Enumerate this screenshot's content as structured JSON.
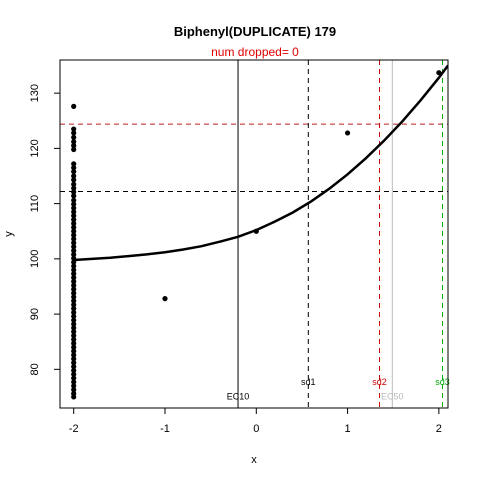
{
  "chart_data": {
    "type": "scatter",
    "title": "Biphenyl(DUPLICATE) 179",
    "subtitle": "num dropped= 0",
    "xlabel": "x",
    "ylabel": "y",
    "xlim": [
      -2.15,
      2.1
    ],
    "ylim": [
      73,
      136
    ],
    "x_ticks": [
      -2,
      -1,
      0,
      1,
      2
    ],
    "y_ticks": [
      80,
      90,
      100,
      110,
      120,
      130
    ],
    "grid": false,
    "points": [
      {
        "x": -2,
        "y": 127.6
      },
      {
        "x": -2,
        "y": 123.5
      },
      {
        "x": -2,
        "y": 122.8
      },
      {
        "x": -2,
        "y": 122.0
      },
      {
        "x": -2,
        "y": 121.2
      },
      {
        "x": -2,
        "y": 120.5
      },
      {
        "x": -2,
        "y": 119.8
      },
      {
        "x": -2,
        "y": 117.2
      },
      {
        "x": -2,
        "y": 116.5
      },
      {
        "x": -2,
        "y": 115.8
      },
      {
        "x": -2,
        "y": 115.0
      },
      {
        "x": -2,
        "y": 114.3
      },
      {
        "x": -2,
        "y": 113.5
      },
      {
        "x": -2,
        "y": 112.8
      },
      {
        "x": -2,
        "y": 112.1
      },
      {
        "x": -2,
        "y": 111.4
      },
      {
        "x": -2,
        "y": 110.6
      },
      {
        "x": -2,
        "y": 109.9
      },
      {
        "x": -2,
        "y": 109.2
      },
      {
        "x": -2,
        "y": 108.5
      },
      {
        "x": -2,
        "y": 107.8
      },
      {
        "x": -2,
        "y": 107.1
      },
      {
        "x": -2,
        "y": 106.4
      },
      {
        "x": -2,
        "y": 105.7
      },
      {
        "x": -2,
        "y": 105.0
      },
      {
        "x": -2,
        "y": 104.3
      },
      {
        "x": -2,
        "y": 103.6
      },
      {
        "x": -2,
        "y": 102.9
      },
      {
        "x": -2,
        "y": 102.2
      },
      {
        "x": -2,
        "y": 101.5
      },
      {
        "x": -2,
        "y": 100.8
      },
      {
        "x": -2,
        "y": 100.1
      },
      {
        "x": -2,
        "y": 99.4
      },
      {
        "x": -2,
        "y": 98.7
      },
      {
        "x": -2,
        "y": 98.0
      },
      {
        "x": -2,
        "y": 97.3
      },
      {
        "x": -2,
        "y": 96.6
      },
      {
        "x": -2,
        "y": 95.9
      },
      {
        "x": -2,
        "y": 95.2
      },
      {
        "x": -2,
        "y": 94.5
      },
      {
        "x": -2,
        "y": 93.8
      },
      {
        "x": -2,
        "y": 93.1
      },
      {
        "x": -2,
        "y": 92.4
      },
      {
        "x": -2,
        "y": 91.7
      },
      {
        "x": -2,
        "y": 91.0
      },
      {
        "x": -2,
        "y": 90.3
      },
      {
        "x": -2,
        "y": 89.6
      },
      {
        "x": -2,
        "y": 88.9
      },
      {
        "x": -2,
        "y": 88.2
      },
      {
        "x": -2,
        "y": 87.5
      },
      {
        "x": -2,
        "y": 86.8
      },
      {
        "x": -2,
        "y": 86.1
      },
      {
        "x": -2,
        "y": 85.4
      },
      {
        "x": -2,
        "y": 84.7
      },
      {
        "x": -2,
        "y": 84.0
      },
      {
        "x": -2,
        "y": 83.3
      },
      {
        "x": -2,
        "y": 82.6
      },
      {
        "x": -2,
        "y": 81.9
      },
      {
        "x": -2,
        "y": 81.2
      },
      {
        "x": -2,
        "y": 80.5
      },
      {
        "x": -2,
        "y": 79.8
      },
      {
        "x": -2,
        "y": 79.1
      },
      {
        "x": -2,
        "y": 78.4
      },
      {
        "x": -2,
        "y": 77.7
      },
      {
        "x": -2,
        "y": 77.0
      },
      {
        "x": -2,
        "y": 76.3
      },
      {
        "x": -2,
        "y": 75.6
      },
      {
        "x": -2,
        "y": 75.0
      },
      {
        "x": -1,
        "y": 92.8
      },
      {
        "x": 0,
        "y": 105.0
      },
      {
        "x": 1,
        "y": 122.8
      },
      {
        "x": 2,
        "y": 133.7
      }
    ],
    "fit_curve": [
      {
        "x": -2.0,
        "y": 99.8
      },
      {
        "x": -1.8,
        "y": 100.0
      },
      {
        "x": -1.6,
        "y": 100.2
      },
      {
        "x": -1.4,
        "y": 100.5
      },
      {
        "x": -1.2,
        "y": 100.8
      },
      {
        "x": -1.0,
        "y": 101.2
      },
      {
        "x": -0.8,
        "y": 101.7
      },
      {
        "x": -0.6,
        "y": 102.3
      },
      {
        "x": -0.4,
        "y": 103.1
      },
      {
        "x": -0.2,
        "y": 104.0
      },
      {
        "x": 0.0,
        "y": 105.2
      },
      {
        "x": 0.2,
        "y": 106.7
      },
      {
        "x": 0.4,
        "y": 108.4
      },
      {
        "x": 0.6,
        "y": 110.4
      },
      {
        "x": 0.8,
        "y": 112.7
      },
      {
        "x": 1.0,
        "y": 115.3
      },
      {
        "x": 1.2,
        "y": 118.2
      },
      {
        "x": 1.4,
        "y": 121.4
      },
      {
        "x": 1.6,
        "y": 124.9
      },
      {
        "x": 1.8,
        "y": 128.7
      },
      {
        "x": 2.0,
        "y": 132.8
      },
      {
        "x": 2.1,
        "y": 135.0
      }
    ],
    "hlines": [
      {
        "y": 112.2,
        "color": "#000000",
        "dashed": true
      },
      {
        "y": 124.4,
        "color": "#b22222",
        "dashed": true
      }
    ],
    "vlines": [
      {
        "x": -0.2,
        "label": "EC10",
        "color": "#000000",
        "dashed": false,
        "label_y": 74.5
      },
      {
        "x": 0.57,
        "label": "sd1",
        "color": "#000000",
        "dashed": true,
        "label_y": 77.2
      },
      {
        "x": 1.35,
        "label": "sd2",
        "color": "#cc0000",
        "dashed": true,
        "label_y": 77.2
      },
      {
        "x": 1.49,
        "label": "EC50",
        "color": "#b8b8b8",
        "dashed": false,
        "label_y": 74.5
      },
      {
        "x": 2.04,
        "label": "sd3",
        "color": "#00aa00",
        "dashed": true,
        "label_y": 77.2
      }
    ]
  }
}
